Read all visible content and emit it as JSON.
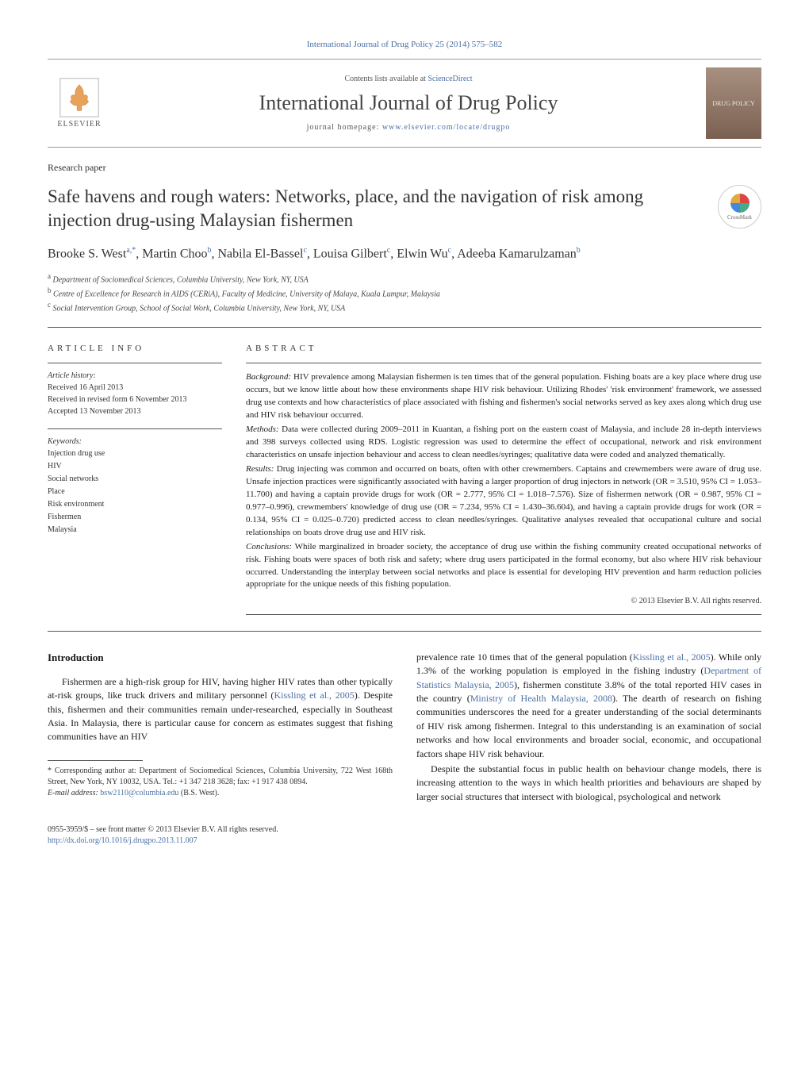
{
  "journal_ref": "International Journal of Drug Policy 25 (2014) 575–582",
  "header": {
    "contents_prefix": "Contents lists available at ",
    "contents_link": "ScienceDirect",
    "journal_title": "International Journal of Drug Policy",
    "homepage_prefix": "journal homepage: ",
    "homepage_link": "www.elsevier.com/locate/drugpo",
    "publisher": "ELSEVIER",
    "cover_text": "DRUG POLICY"
  },
  "article_type": "Research paper",
  "title": "Safe havens and rough waters: Networks, place, and the navigation of risk among injection drug-using Malaysian fishermen",
  "crossmark_label": "CrossMark",
  "authors_html": "Brooke S. West<sup>a,*</sup>, Martin Choo<sup>b</sup>, Nabila El-Bassel<sup>c</sup>, Louisa Gilbert<sup>c</sup>, Elwin Wu<sup>c</sup>, Adeeba Kamarulzaman<sup>b</sup>",
  "affiliations": {
    "a": "Department of Sociomedical Sciences, Columbia University, New York, NY, USA",
    "b": "Centre of Excellence for Research in AIDS (CERiA), Faculty of Medicine, University of Malaya, Kuala Lumpur, Malaysia",
    "c": "Social Intervention Group, School of Social Work, Columbia University, New York, NY, USA"
  },
  "info": {
    "heading": "ARTICLE INFO",
    "history_label": "Article history:",
    "received": "Received 16 April 2013",
    "revised": "Received in revised form 6 November 2013",
    "accepted": "Accepted 13 November 2013",
    "keywords_label": "Keywords:",
    "keywords": [
      "Injection drug use",
      "HIV",
      "Social networks",
      "Place",
      "Risk environment",
      "Fishermen",
      "Malaysia"
    ]
  },
  "abstract": {
    "heading": "ABSTRACT",
    "background_label": "Background:",
    "background": "HIV prevalence among Malaysian fishermen is ten times that of the general population. Fishing boats are a key place where drug use occurs, but we know little about how these environments shape HIV risk behaviour. Utilizing Rhodes' 'risk environment' framework, we assessed drug use contexts and how characteristics of place associated with fishing and fishermen's social networks served as key axes along which drug use and HIV risk behaviour occurred.",
    "methods_label": "Methods:",
    "methods": "Data were collected during 2009–2011 in Kuantan, a fishing port on the eastern coast of Malaysia, and include 28 in-depth interviews and 398 surveys collected using RDS. Logistic regression was used to determine the effect of occupational, network and risk environment characteristics on unsafe injection behaviour and access to clean needles/syringes; qualitative data were coded and analyzed thematically.",
    "results_label": "Results:",
    "results": "Drug injecting was common and occurred on boats, often with other crewmembers. Captains and crewmembers were aware of drug use. Unsafe injection practices were significantly associated with having a larger proportion of drug injectors in network (OR = 3.510, 95% CI = 1.053–11.700) and having a captain provide drugs for work (OR = 2.777, 95% CI = 1.018–7.576). Size of fishermen network (OR = 0.987, 95% CI = 0.977–0.996), crewmembers' knowledge of drug use (OR = 7.234, 95% CI = 1.430–36.604), and having a captain provide drugs for work (OR = 0.134, 95% CI = 0.025–0.720) predicted access to clean needles/syringes. Qualitative analyses revealed that occupational culture and social relationships on boats drove drug use and HIV risk.",
    "conclusions_label": "Conclusions:",
    "conclusions": "While marginalized in broader society, the acceptance of drug use within the fishing community created occupational networks of risk. Fishing boats were spaces of both risk and safety; where drug users participated in the formal economy, but also where HIV risk behaviour occurred. Understanding the interplay between social networks and place is essential for developing HIV prevention and harm reduction policies appropriate for the unique needs of this fishing population.",
    "copyright": "© 2013 Elsevier B.V. All rights reserved."
  },
  "body": {
    "intro_heading": "Introduction",
    "left_p1_a": "Fishermen are a high-risk group for HIV, having higher HIV rates than other typically at-risk groups, like truck drivers and military personnel (",
    "left_p1_cite1": "Kissling et al., 2005",
    "left_p1_b": "). Despite this, fishermen and their communities remain under-researched, especially in Southeast Asia. In Malaysia, there is particular cause for concern as estimates suggest that fishing communities have an HIV",
    "right_p1_a": "prevalence rate 10 times that of the general population (",
    "right_p1_cite1": "Kissling et al., 2005",
    "right_p1_b": "). While only 1.3% of the working population is employed in the fishing industry (",
    "right_p1_cite2": "Department of Statistics Malaysia, 2005",
    "right_p1_c": "), fishermen constitute 3.8% of the total reported HIV cases in the country (",
    "right_p1_cite3": "Ministry of Health Malaysia, 2008",
    "right_p1_d": "). The dearth of research on fishing communities underscores the need for a greater understanding of the social determinants of HIV risk among fishermen. Integral to this understanding is an examination of social networks and how local environments and broader social, economic, and occupational factors shape HIV risk behaviour.",
    "right_p2": "Despite the substantial focus in public health on behaviour change models, there is increasing attention to the ways in which health priorities and behaviours are shaped by larger social structures that intersect with biological, psychological and network"
  },
  "footnote": {
    "corr": "* Corresponding author at: Department of Sociomedical Sciences, Columbia University, 722 West 168th Street, New York, NY 10032, USA. Tel.: +1 347 218 3628; fax: +1 917 438 0894.",
    "email_label": "E-mail address:",
    "email": "bsw2110@columbia.edu",
    "email_who": "(B.S. West)."
  },
  "footer": {
    "issn": "0955-3959/$ – see front matter © 2013 Elsevier B.V. All rights reserved.",
    "doi": "http://dx.doi.org/10.1016/j.drugpo.2013.11.007"
  },
  "colors": {
    "link": "#4a6fa5",
    "text": "#1a1a1a",
    "rule": "#555555"
  }
}
